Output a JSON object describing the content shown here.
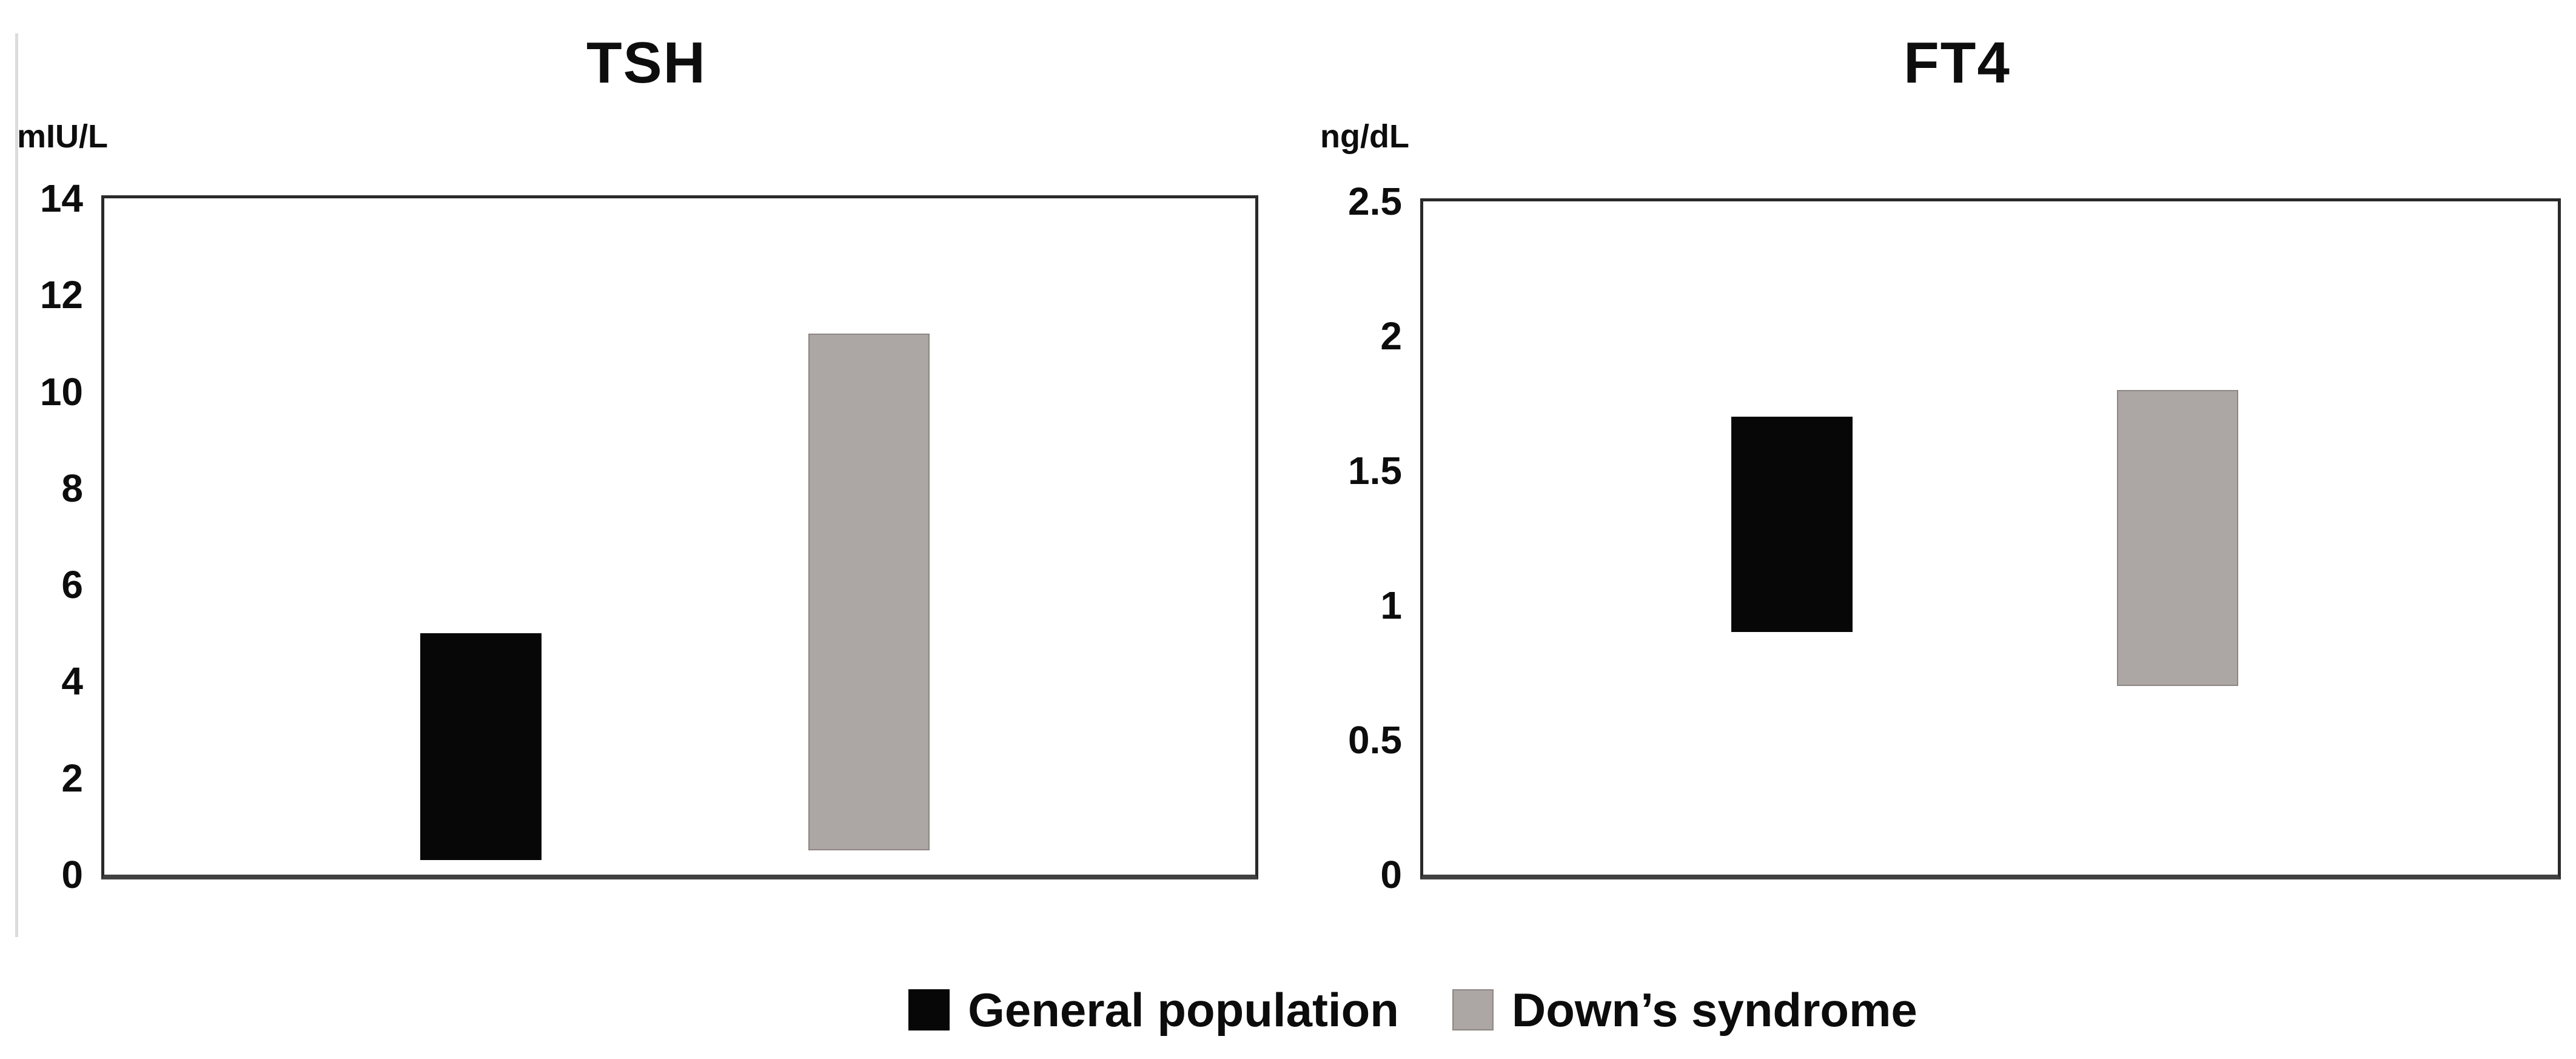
{
  "figure": {
    "background": "#ffffff",
    "bar_black": "#070707",
    "bar_gray": "#ACA6A4",
    "frame_color": "#2a2a2a"
  },
  "chart_data": [
    {
      "type": "bar",
      "subtype": "floating-range-bars",
      "title": "TSH",
      "ylabel": "mIU/L",
      "xlabel": "",
      "ylim": [
        0,
        14
      ],
      "yticks": [
        "0",
        "2",
        "4",
        "6",
        "8",
        "10",
        "12",
        "14"
      ],
      "grid": false,
      "categories": [
        "General population",
        "Down’s syndrome"
      ],
      "series": [
        {
          "name": "General population",
          "low": 0.3,
          "high": 5.0,
          "color": "#070707"
        },
        {
          "name": "Down’s syndrome",
          "low": 0.5,
          "high": 11.2,
          "color": "#ACA6A4"
        }
      ]
    },
    {
      "type": "bar",
      "subtype": "floating-range-bars",
      "title": "FT4",
      "ylabel": "ng/dL",
      "xlabel": "",
      "ylim": [
        0,
        2.5
      ],
      "yticks": [
        "0",
        "0.5",
        "1",
        "1.5",
        "2",
        "2.5"
      ],
      "grid": false,
      "categories": [
        "General population",
        "Down’s syndrome"
      ],
      "series": [
        {
          "name": "General population",
          "low": 0.9,
          "high": 1.7,
          "color": "#070707"
        },
        {
          "name": "Down’s syndrome",
          "low": 0.7,
          "high": 1.8,
          "color": "#ACA6A4"
        }
      ]
    }
  ],
  "legend": {
    "position": "bottom-center",
    "items": [
      {
        "label": "General population",
        "color": "#070707"
      },
      {
        "label": "Down’s syndrome",
        "color": "#ACA6A4"
      }
    ]
  }
}
